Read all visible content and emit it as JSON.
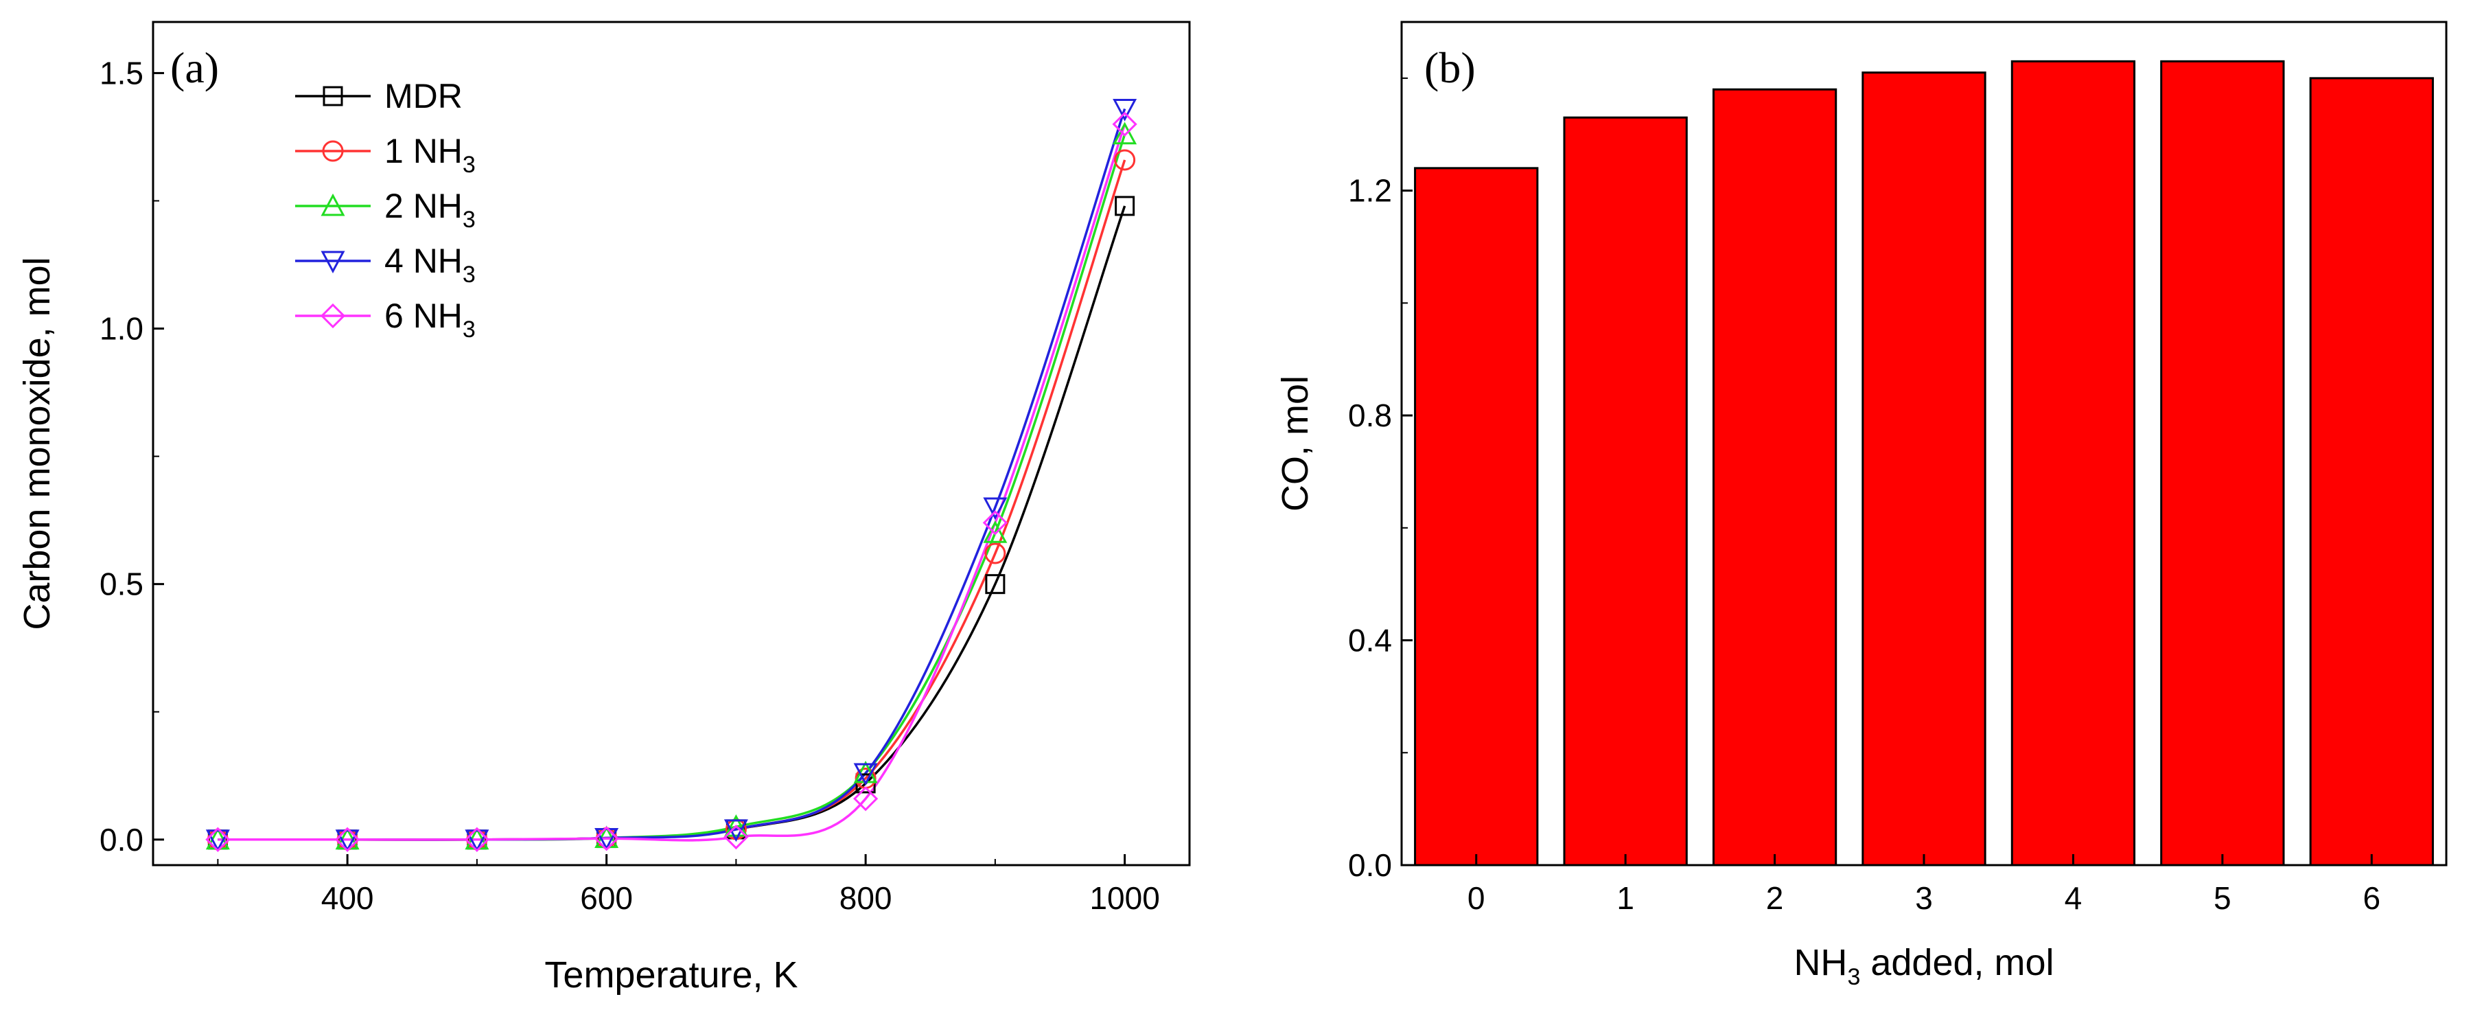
{
  "chart_data": [
    {
      "panel": "(a)",
      "type": "line",
      "xlabel": "Temperature, K",
      "ylabel": "Carbon monoxide, mol",
      "xlim": [
        250,
        1050
      ],
      "ylim": [
        -0.05,
        1.6
      ],
      "xticks": [
        400,
        600,
        800,
        1000
      ],
      "yticks": [
        0.0,
        0.5,
        1.0,
        1.5
      ],
      "x": [
        300,
        400,
        500,
        600,
        700,
        800,
        900,
        1000
      ],
      "legend_position": "top-left",
      "series": [
        {
          "name": "MDR",
          "label_main": "MDR",
          "label_sub": "",
          "color": "#000000",
          "marker": "square",
          "values": [
            0.0,
            0.0,
            0.0,
            0.003,
            0.02,
            0.11,
            0.5,
            1.24
          ]
        },
        {
          "name": "1 NH3",
          "label_main": "1 NH",
          "label_sub": "3",
          "color": "#ff3333",
          "marker": "circle",
          "values": [
            0.0,
            0.0,
            0.0,
            0.003,
            0.02,
            0.12,
            0.56,
            1.33
          ]
        },
        {
          "name": "2 NH3",
          "label_main": "2 NH",
          "label_sub": "3",
          "color": "#22dd22",
          "marker": "triangle-up",
          "values": [
            0.0,
            0.0,
            0.0,
            0.003,
            0.025,
            0.13,
            0.6,
            1.38
          ]
        },
        {
          "name": "4 NH3",
          "label_main": "4 NH",
          "label_sub": "3",
          "color": "#2222dd",
          "marker": "triangle-down",
          "values": [
            0.0,
            0.0,
            0.0,
            0.003,
            0.02,
            0.13,
            0.65,
            1.43
          ]
        },
        {
          "name": "6 NH3",
          "label_main": "6 NH",
          "label_sub": "3",
          "color": "#ff33ff",
          "marker": "diamond",
          "values": [
            0.0,
            0.0,
            0.0,
            0.002,
            0.005,
            0.08,
            0.62,
            1.4
          ]
        }
      ]
    },
    {
      "panel": "(b)",
      "type": "bar",
      "xlabel_main": "NH",
      "xlabel_sub": "3",
      "xlabel_rest": " added, mol",
      "ylabel": "CO, mol",
      "categories": [
        "0",
        "1",
        "2",
        "3",
        "4",
        "5",
        "6"
      ],
      "values": [
        1.24,
        1.33,
        1.38,
        1.41,
        1.43,
        1.43,
        1.4
      ],
      "ylim": [
        0.0,
        1.5
      ],
      "yticks": [
        0.0,
        0.4,
        0.8,
        1.2
      ],
      "bar_color": "#ff0000"
    }
  ]
}
